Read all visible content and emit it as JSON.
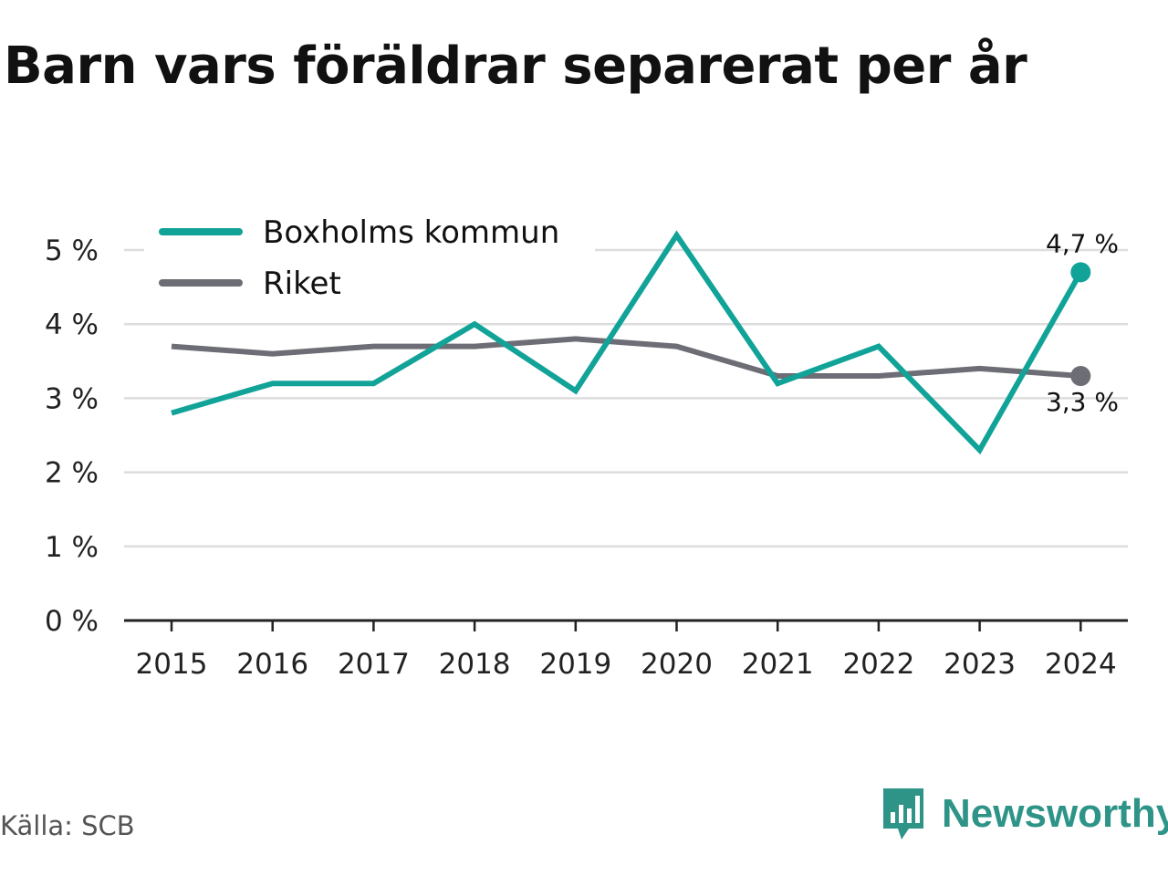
{
  "title": "Barn vars föräldrar separerat per år",
  "source": "Källa: SCB",
  "brand": {
    "name": "Newsworthy",
    "icon": "newsworthy-logo-icon"
  },
  "colors": {
    "boxholm": "#11a398",
    "riket": "#6d6d75",
    "grid": "#dddddd",
    "axis": "#222222"
  },
  "chart_data": {
    "type": "line",
    "x": [
      "2015",
      "2016",
      "2017",
      "2018",
      "2019",
      "2020",
      "2021",
      "2022",
      "2023",
      "2024"
    ],
    "series": [
      {
        "name": "Boxholms kommun",
        "color": "#11a398",
        "values": [
          2.8,
          3.2,
          3.2,
          4.0,
          3.1,
          5.2,
          3.2,
          3.7,
          2.3,
          4.7
        ]
      },
      {
        "name": "Riket",
        "color": "#6d6d75",
        "values": [
          3.7,
          3.6,
          3.7,
          3.7,
          3.8,
          3.7,
          3.3,
          3.3,
          3.4,
          3.3
        ]
      }
    ],
    "yticks": [
      "0 %",
      "1 %",
      "2 %",
      "3 %",
      "4 %",
      "5 %"
    ],
    "ylim": [
      0,
      5.5
    ],
    "end_labels": [
      "4,7 %",
      "3,3 %"
    ],
    "legend_position": "top-left",
    "grid": true
  }
}
